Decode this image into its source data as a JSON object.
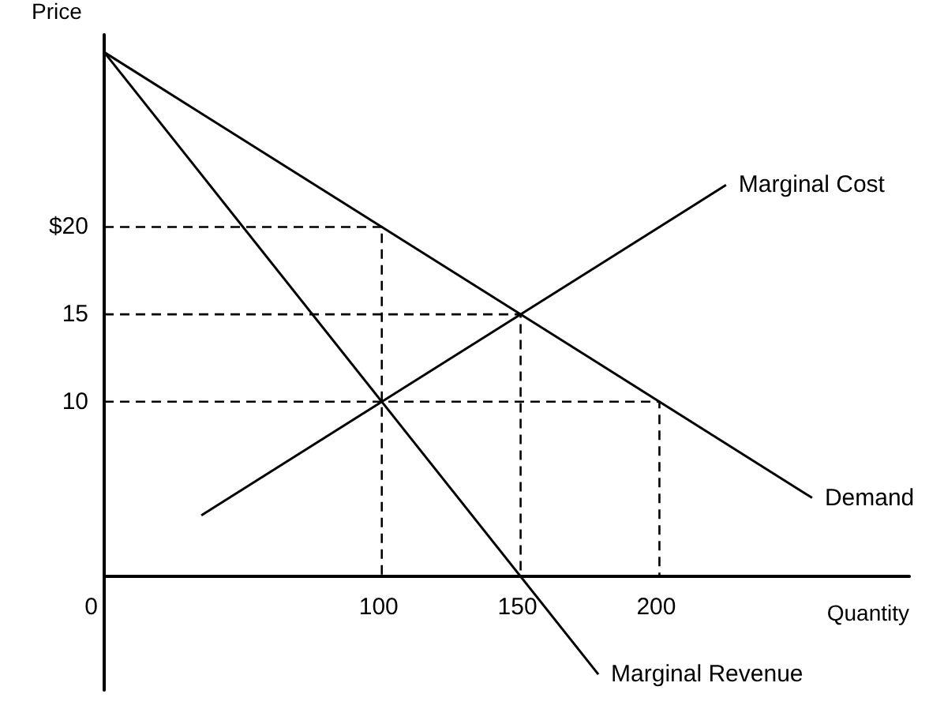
{
  "chart_data": {
    "type": "line",
    "xlabel": "Quantity",
    "ylabel": "Price",
    "xlim": [
      0,
      290
    ],
    "ylim": [
      -6.5,
      31
    ],
    "xticks": [
      0,
      100,
      150,
      200
    ],
    "yticks": [
      10,
      15,
      {
        "value": 20,
        "label": "$20"
      }
    ],
    "grid": false,
    "marker": "none",
    "series": [
      {
        "name": "Demand",
        "color": "#000000",
        "line_style": "solid",
        "x": [
          0,
          255
        ],
        "values": [
          30,
          4.5
        ]
      },
      {
        "name": "Marginal Revenue",
        "color": "#000000",
        "line_style": "solid",
        "x": [
          0,
          178
        ],
        "values": [
          30,
          -5.6
        ]
      },
      {
        "name": "Marginal Cost",
        "color": "#000000",
        "line_style": "solid",
        "x": [
          35,
          224
        ],
        "values": [
          3.5,
          22.4
        ]
      },
      {
        "color": "#000000",
        "line_style": "dashed",
        "x": [
          0,
          100,
          100
        ],
        "values": [
          20,
          20,
          0
        ]
      },
      {
        "color": "#000000",
        "line_style": "dashed",
        "x": [
          0,
          150,
          150
        ],
        "values": [
          15,
          15,
          0
        ]
      },
      {
        "color": "#000000",
        "line_style": "dashed",
        "x": [
          0,
          200,
          200
        ],
        "values": [
          10,
          10,
          0
        ]
      }
    ]
  }
}
